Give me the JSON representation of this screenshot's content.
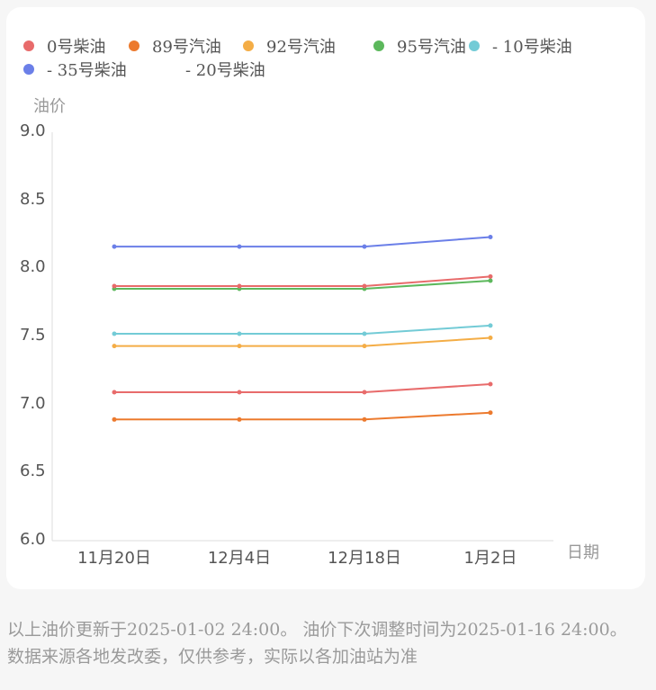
{
  "chart_data": {
    "type": "line",
    "categories": [
      "11月20日",
      "12月4日",
      "12月18日",
      "1月2日"
    ],
    "ylabel": "油价",
    "xlabel": "日期",
    "ylim": [
      6.0,
      9.0
    ],
    "yticks": [
      "6.0",
      "6.5",
      "7.0",
      "7.5",
      "8.0",
      "8.5",
      "9.0"
    ],
    "grid": false,
    "legend_position": "top",
    "series": [
      {
        "name": "0号柴油",
        "color": "#e86b6b",
        "values": [
          7.09,
          7.09,
          7.09,
          7.15
        ]
      },
      {
        "name": "89号汽油",
        "color": "#ec7a2e",
        "values": [
          6.89,
          6.89,
          6.89,
          6.94
        ]
      },
      {
        "name": "92号汽油",
        "color": "#f4ad46",
        "values": [
          7.43,
          7.43,
          7.43,
          7.49
        ]
      },
      {
        "name": "95号汽油",
        "color": "#5cb85c",
        "values": [
          7.85,
          7.85,
          7.85,
          7.91
        ]
      },
      {
        "name": "- 10号柴油",
        "color": "#73cbd6",
        "values": [
          7.52,
          7.52,
          7.52,
          7.58
        ]
      },
      {
        "name": "- 35号柴油",
        "color": "#6b7fe8",
        "values": [
          8.16,
          8.16,
          8.16,
          8.23
        ]
      },
      {
        "name": "- 20号柴油",
        "color": "#e86b6b",
        "values": [
          7.87,
          7.87,
          7.87,
          7.94
        ]
      }
    ]
  },
  "footer_text": "以上油价更新于2025-01-02 24:00。 油价下次调整时间为2025-01-16 24:00。 数据来源各地发改委，仅供参考，实际以各加油站为准"
}
